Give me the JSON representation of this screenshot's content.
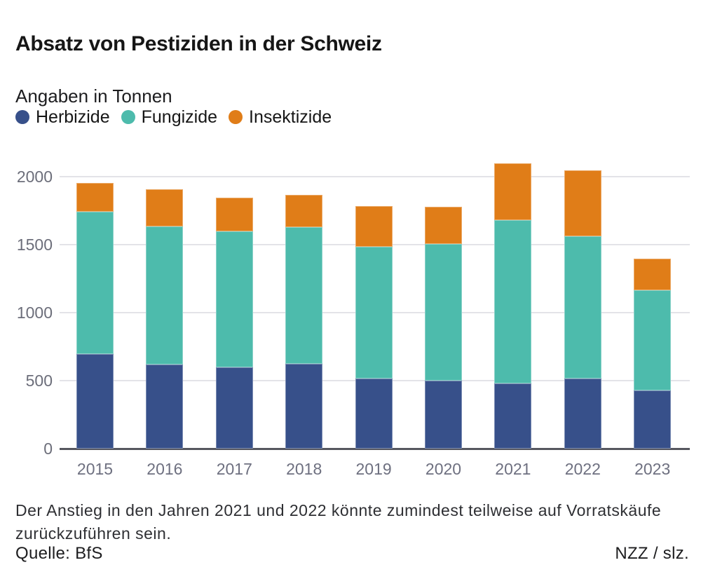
{
  "header": {
    "title": "Absatz von Pestiziden in der Schweiz",
    "subtitle": "Angaben in Tonnen"
  },
  "legend": [
    {
      "label": "Herbizide",
      "color": "#37508a"
    },
    {
      "label": "Fungizide",
      "color": "#4dbbac"
    },
    {
      "label": "Insektizide",
      "color": "#e07d18"
    }
  ],
  "chart_data": {
    "type": "bar",
    "stacked": true,
    "title": "Absatz von Pestiziden in der Schweiz",
    "subtitle": "Angaben in Tonnen",
    "unit": "Tonnen",
    "categories": [
      "2015",
      "2016",
      "2017",
      "2018",
      "2019",
      "2020",
      "2021",
      "2022",
      "2023"
    ],
    "series": [
      {
        "name": "Herbizide",
        "color": "#37508a",
        "values": [
          695,
          620,
          600,
          625,
          515,
          500,
          480,
          515,
          430
        ]
      },
      {
        "name": "Fungizide",
        "color": "#4dbbac",
        "values": [
          1045,
          1015,
          995,
          1005,
          970,
          1005,
          1200,
          1045,
          735
        ]
      },
      {
        "name": "Insektizide",
        "color": "#e07d18",
        "values": [
          215,
          270,
          250,
          235,
          300,
          270,
          415,
          485,
          230
        ]
      }
    ],
    "totals": [
      1955,
      1905,
      1845,
      1865,
      1785,
      1775,
      2095,
      2045,
      1395
    ],
    "y_ticks": [
      0,
      500,
      1000,
      1500,
      2000
    ],
    "ylim": [
      0,
      2140
    ],
    "grid": true,
    "legend_position": "top",
    "xlabel": "",
    "ylabel": ""
  },
  "footer": {
    "note_lines": [
      "Der Anstieg in den Jahren 2021 und 2022 könnte zumindest teilweise auf Vorratskäufe",
      "zurückzuführen sein."
    ],
    "source": "Quelle: BfS",
    "credit": "NZZ / slz."
  },
  "colors": {
    "herbizide": "#37508a",
    "fungizide": "#4dbbac",
    "insektizide": "#e07d18",
    "gridline": "#e3e3e8",
    "axis": "#56575f",
    "tick_text": "#6c6e7a",
    "text": "#161616"
  }
}
